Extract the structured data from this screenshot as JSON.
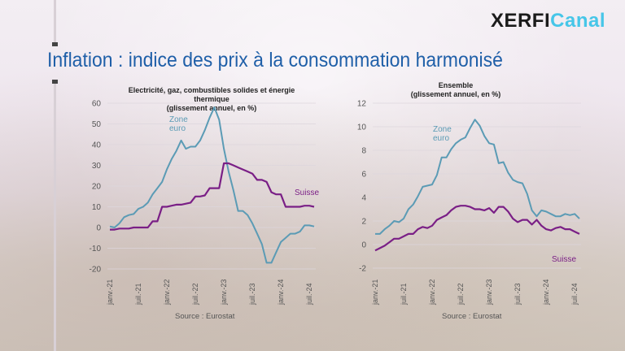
{
  "header": {
    "logo_part1": "XERFI",
    "logo_part2": "Canal",
    "title": "Inflation : indice des prix à la consommation harmonisé"
  },
  "colors": {
    "zone_euro": "#5b9bb5",
    "suisse": "#7a1f86",
    "title": "#1f5fa8",
    "logo_accent": "#46c6e8"
  },
  "chart_data": [
    {
      "type": "line",
      "title_line1": "Electricité, gaz, combustibles solides et énergie thermique",
      "title_line2": "(glissement annuel, en %)",
      "ylim": [
        -20,
        60
      ],
      "yticks": [
        -20,
        -10,
        0,
        10,
        20,
        30,
        40,
        50,
        60
      ],
      "xtick_labels": [
        "janv.-21",
        "juil.-21",
        "janv.-22",
        "juil.-22",
        "janv.-23",
        "juil.-23",
        "janv.-24",
        "juil.-24"
      ],
      "n_points": 44,
      "series": [
        {
          "name": "Zone euro",
          "name_line1": "Zone",
          "name_line2": "euro",
          "values": [
            0.5,
            0,
            2,
            5,
            6,
            6.5,
            9,
            10,
            12,
            16,
            19,
            22,
            28,
            33,
            37,
            42,
            38,
            39,
            39,
            42,
            47,
            53,
            58,
            52,
            38,
            27,
            18,
            8,
            8,
            6,
            2,
            -3,
            -8,
            -17,
            -17,
            -12,
            -7,
            -5,
            -3,
            -3,
            -2,
            1,
            1,
            0.5
          ]
        },
        {
          "name": "Suisse",
          "values": [
            -1,
            -1,
            -0.5,
            -0.5,
            -0.5,
            0,
            0,
            0,
            0,
            3,
            3,
            10,
            10,
            10.5,
            11,
            11,
            11.5,
            12,
            15,
            15,
            15.5,
            19,
            19,
            19,
            31,
            31,
            30,
            29,
            28,
            27,
            26,
            23,
            23,
            22,
            17,
            16,
            16,
            10,
            10,
            10,
            10,
            10.5,
            10.5,
            10
          ]
        }
      ],
      "source": "Source : Eurostat"
    },
    {
      "type": "line",
      "title_line1": "Ensemble",
      "title_line2": "(glissement annuel, en %)",
      "ylim": [
        -2,
        12
      ],
      "yticks": [
        -2,
        0,
        2,
        4,
        6,
        8,
        10,
        12
      ],
      "xtick_labels": [
        "janv.-21",
        "juil.-21",
        "janv.-22",
        "juil.-22",
        "janv.-23",
        "juil.-23",
        "janv.-24",
        "juil.-24"
      ],
      "n_points": 44,
      "series": [
        {
          "name": "Zone euro",
          "name_line1": "Zone",
          "name_line2": "euro",
          "values": [
            0.9,
            0.9,
            1.3,
            1.6,
            2,
            1.9,
            2.2,
            3,
            3.4,
            4.1,
            4.9,
            5,
            5.1,
            5.9,
            7.4,
            7.4,
            8.1,
            8.6,
            8.9,
            9.1,
            9.9,
            10.6,
            10.1,
            9.2,
            8.6,
            8.5,
            6.9,
            7,
            6.1,
            5.5,
            5.3,
            5.2,
            4.3,
            2.9,
            2.4,
            2.9,
            2.8,
            2.6,
            2.4,
            2.4,
            2.6,
            2.5,
            2.6,
            2.2
          ]
        },
        {
          "name": "Suisse",
          "values": [
            -0.5,
            -0.3,
            -0.1,
            0.2,
            0.5,
            0.5,
            0.7,
            0.9,
            0.9,
            1.3,
            1.5,
            1.4,
            1.6,
            2.1,
            2.3,
            2.5,
            2.9,
            3.2,
            3.3,
            3.3,
            3.2,
            3,
            3,
            2.9,
            3.1,
            2.7,
            3.2,
            3.2,
            2.8,
            2.2,
            1.9,
            2.1,
            2.1,
            1.7,
            2.1,
            1.6,
            1.3,
            1.2,
            1.4,
            1.5,
            1.3,
            1.3,
            1.1,
            0.9
          ]
        }
      ],
      "source": "Source : Eurostat"
    }
  ]
}
